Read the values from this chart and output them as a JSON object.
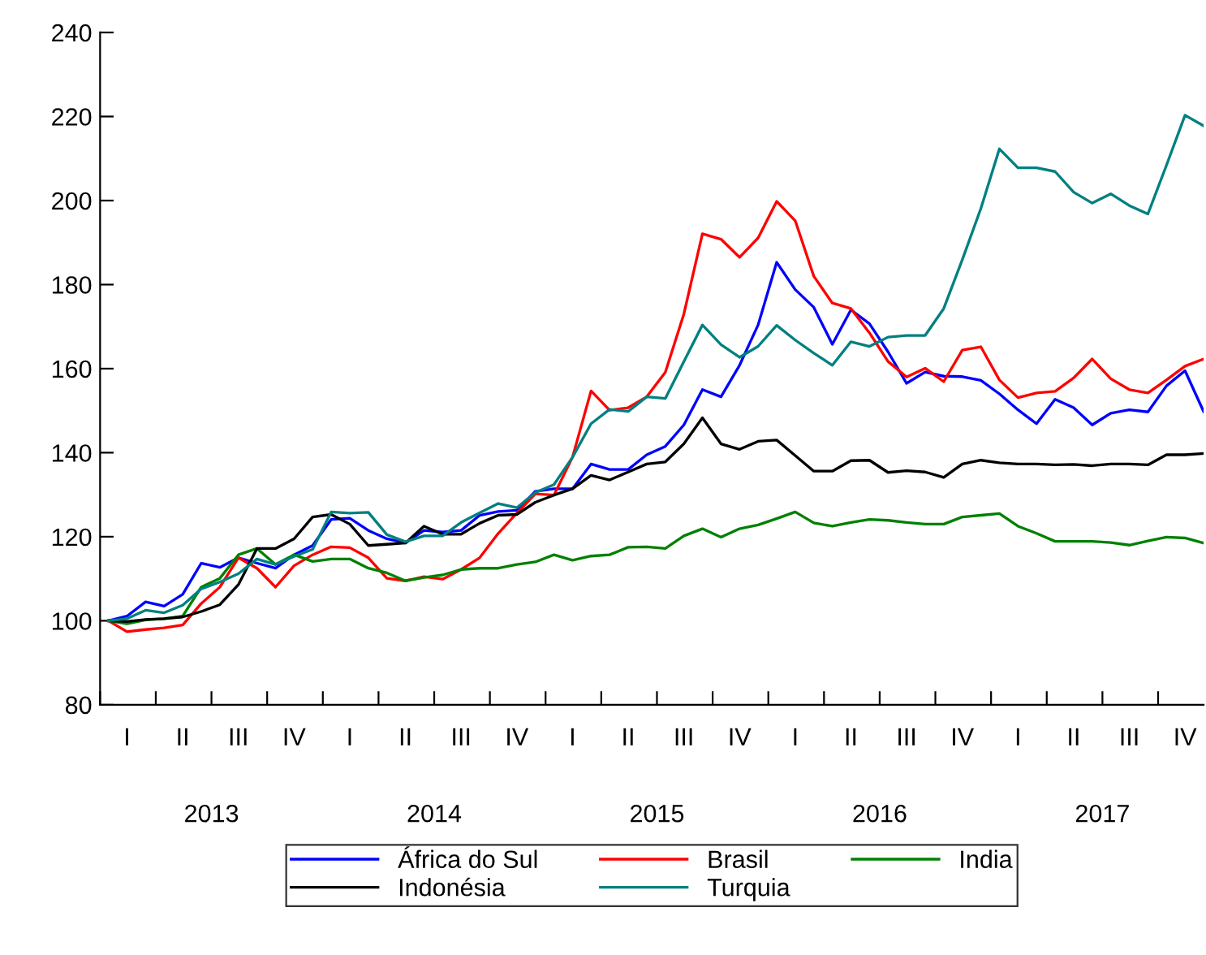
{
  "chart_data": {
    "type": "line",
    "categories": [
      null,
      "I",
      null,
      null,
      "II",
      null,
      null,
      "III",
      null,
      null,
      "IV",
      null,
      null,
      "I",
      null,
      null,
      "II",
      null,
      null,
      "III",
      null,
      null,
      "IV",
      null,
      null,
      "I",
      null,
      null,
      "II",
      null,
      null,
      "III",
      null,
      null,
      "IV",
      null,
      null,
      "I",
      null,
      null,
      "II",
      null,
      null,
      "III",
      null,
      null,
      "IV",
      null,
      null,
      "I",
      null,
      null,
      "II",
      null,
      null,
      "III",
      null,
      null,
      "IV",
      null
    ],
    "annotations": [
      "2013",
      "2014",
      "2015",
      "2016",
      "2017"
    ],
    "series": [
      {
        "name": "África do Sul",
        "color": "#0000ff",
        "values": [
          100,
          101.1,
          104.5,
          103.5,
          106.3,
          113.7,
          112.7,
          115,
          113.7,
          112.5,
          115.7,
          117.9,
          124.1,
          124.4,
          121.5,
          119.5,
          118.5,
          121.5,
          121.1,
          121.5,
          125.1,
          126,
          126.3,
          130.8,
          131.4,
          131.4,
          137.3,
          136,
          136,
          139.5,
          141.5,
          146.6,
          155,
          153.3,
          160.8,
          170.4,
          185.3,
          178.8,
          174.6,
          165.8,
          174,
          170.7,
          164,
          156.5,
          159.2,
          158.2,
          158.1,
          157.2,
          154,
          150.2,
          146.9,
          152.7,
          150.7,
          146.6,
          149.4,
          150.2,
          149.7,
          155.9,
          159.5,
          149.8
        ]
      },
      {
        "name": "Brasil",
        "color": "#ff0000",
        "values": [
          100,
          97.4,
          97.9,
          98.3,
          99,
          104.1,
          108,
          115,
          112.5,
          108,
          113.1,
          115.7,
          117.6,
          117.4,
          115,
          110.1,
          109.5,
          110.5,
          109.9,
          112.2,
          115,
          120.8,
          125.6,
          130.2,
          129.9,
          138.9,
          154.7,
          150.1,
          150.7,
          153.3,
          159.1,
          173,
          192.1,
          190.8,
          186.5,
          191.1,
          199.8,
          195.2,
          182,
          175.6,
          174.3,
          168.5,
          161.7,
          158,
          160.1,
          156.9,
          164.4,
          165.2,
          157.3,
          153.1,
          154.2,
          154.6,
          157.8,
          162.3,
          157.6,
          155,
          154.2,
          157.3,
          160.6,
          162.3
        ]
      },
      {
        "name": "India",
        "color": "#008000",
        "values": [
          100,
          99.3,
          100.2,
          100.5,
          101.1,
          108,
          110.1,
          115.7,
          117.2,
          113.4,
          115.7,
          114.1,
          114.7,
          114.7,
          112.5,
          111.4,
          109.5,
          110.3,
          110.9,
          112.2,
          112.5,
          112.5,
          113.4,
          114,
          115.7,
          114.4,
          115.4,
          115.7,
          117.5,
          117.6,
          117.2,
          120.2,
          121.9,
          119.9,
          121.9,
          122.8,
          124.3,
          125.9,
          123.3,
          122.5,
          123.4,
          124.1,
          123.9,
          123.4,
          123,
          123,
          124.7,
          125.1,
          125.5,
          122.5,
          120.8,
          118.9,
          118.9,
          118.9,
          118.6,
          118,
          119,
          119.9,
          119.7,
          118.5
        ]
      },
      {
        "name": "Indonésia",
        "color": "#000000",
        "values": [
          100,
          99.8,
          100.3,
          100.5,
          100.9,
          102.2,
          103.8,
          108.6,
          117.2,
          117.2,
          119.5,
          124.7,
          125.3,
          123,
          117.9,
          118.2,
          118.5,
          122.5,
          120.6,
          120.6,
          123.2,
          125.1,
          125.3,
          128.2,
          129.9,
          131.4,
          134.6,
          133.5,
          135.4,
          137.3,
          137.8,
          142.1,
          148.3,
          142.1,
          140.8,
          142.7,
          143,
          139.3,
          135.6,
          135.6,
          138.1,
          138.2,
          135.3,
          135.7,
          135.4,
          134.1,
          137.3,
          138.2,
          137.6,
          137.3,
          137.3,
          137.1,
          137.2,
          136.9,
          137.3,
          137.3,
          137.1,
          139.5,
          139.5,
          139.8
        ]
      },
      {
        "name": "Turquia",
        "color": "#008080",
        "values": [
          100,
          100.5,
          102.5,
          101.9,
          103.7,
          107.6,
          109.2,
          111.2,
          114.7,
          113.4,
          115.3,
          117,
          125.9,
          125.6,
          125.8,
          120.5,
          118.8,
          120.2,
          120.2,
          123.4,
          125.7,
          127.9,
          126.9,
          130.5,
          132.4,
          138.9,
          146.9,
          150.3,
          149.8,
          153.3,
          152.9,
          161.7,
          170.4,
          165.7,
          162.7,
          165.3,
          170.3,
          166.8,
          163.7,
          160.8,
          166.4,
          165.3,
          167.5,
          167.9,
          167.9,
          174.3,
          185.9,
          198.1,
          212.3,
          207.8,
          207.8,
          206.9,
          202,
          199.4,
          201.6,
          198.8,
          196.8,
          208.4,
          220.3,
          217.8
        ]
      }
    ],
    "ylim": [
      80,
      240
    ],
    "yticks": [
      80,
      100,
      120,
      140,
      160,
      180,
      200,
      220,
      240
    ],
    "legend": "bottom",
    "line_style": "solid"
  }
}
